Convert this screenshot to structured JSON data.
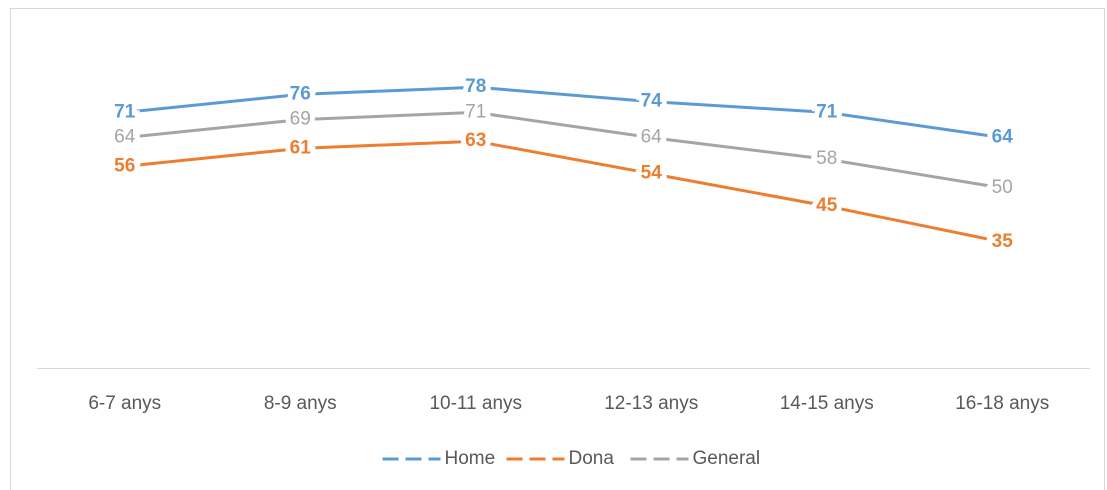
{
  "chart_data": {
    "type": "line",
    "categories": [
      "6-7 anys",
      "8-9 anys",
      "10-11 anys",
      "12-13 anys",
      "14-15 anys",
      "16-18 anys"
    ],
    "series": [
      {
        "name": "Home",
        "color": "#5b9bd5",
        "values": [
          71,
          76,
          78,
          74,
          71,
          64
        ]
      },
      {
        "name": "Dona",
        "color": "#ed7d31",
        "values": [
          56,
          61,
          63,
          54,
          45,
          35
        ]
      },
      {
        "name": "General",
        "color": "#a5a5a5",
        "values": [
          64,
          69,
          71,
          64,
          58,
          50
        ]
      }
    ],
    "ylim": [
      0,
      100
    ],
    "legend": "bottom"
  }
}
